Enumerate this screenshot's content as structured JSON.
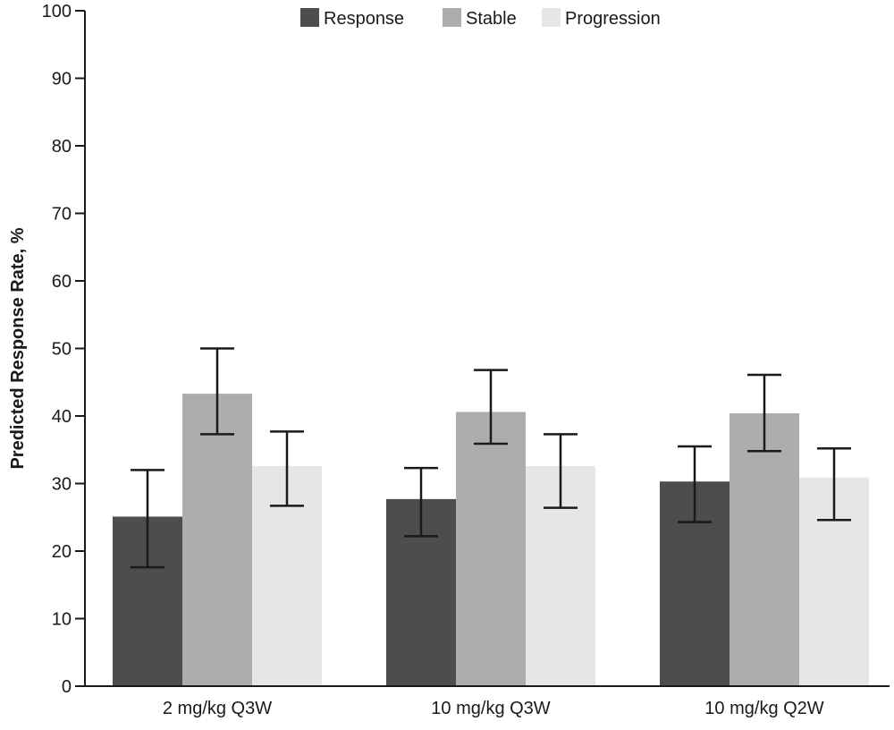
{
  "chart_data": {
    "type": "bar",
    "title": "",
    "xlabel": "",
    "ylabel": "Predicted Response Rate, %",
    "ylim": [
      0,
      100
    ],
    "yticks": [
      0,
      10,
      20,
      30,
      40,
      50,
      60,
      70,
      80,
      90,
      100
    ],
    "grid": false,
    "legend_position": "top",
    "categories": [
      "2 mg/kg Q3W",
      "10 mg/kg Q3W",
      "10 mg/kg Q2W"
    ],
    "series": [
      {
        "name": "Response",
        "color": "#4d4d4d",
        "values": [
          25.1,
          27.7,
          30.3
        ],
        "err_low": [
          17.6,
          22.2,
          24.3
        ],
        "err_high": [
          32.0,
          32.3,
          35.5
        ]
      },
      {
        "name": "Stable",
        "color": "#adadad",
        "values": [
          43.3,
          40.6,
          40.4
        ],
        "err_low": [
          37.3,
          35.9,
          34.8
        ],
        "err_high": [
          50.0,
          46.8,
          46.1
        ]
      },
      {
        "name": "Progression",
        "color": "#e6e6e6",
        "values": [
          32.6,
          32.6,
          30.9
        ],
        "err_low": [
          26.7,
          26.4,
          24.6
        ],
        "err_high": [
          37.7,
          37.3,
          35.2
        ]
      }
    ]
  }
}
